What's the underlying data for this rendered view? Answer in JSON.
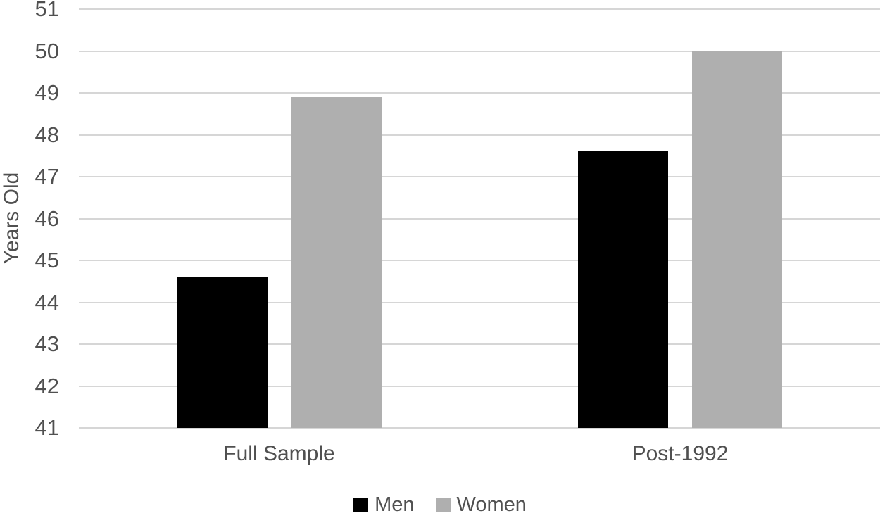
{
  "chart_data": {
    "type": "bar",
    "categories": [
      "Full Sample",
      "Post-1992"
    ],
    "series": [
      {
        "name": "Men",
        "color": "#000000",
        "values": [
          44.6,
          47.6
        ]
      },
      {
        "name": "Women",
        "color": "#AFAFAF",
        "values": [
          48.9,
          50.0
        ]
      }
    ],
    "title": "",
    "xlabel": "",
    "ylabel": "Years Old",
    "ylim": [
      41,
      51
    ],
    "ytick_step": 1,
    "ytick_labels": [
      "41",
      "42",
      "43",
      "44",
      "45",
      "46",
      "47",
      "48",
      "49",
      "50",
      "51"
    ],
    "grid": true,
    "legend_position": "bottom",
    "legend_entries": [
      "Men",
      "Women"
    ],
    "colors": {
      "gridline": "#D6D6D6",
      "text": "#505050",
      "background": "#FFFFFF"
    }
  }
}
